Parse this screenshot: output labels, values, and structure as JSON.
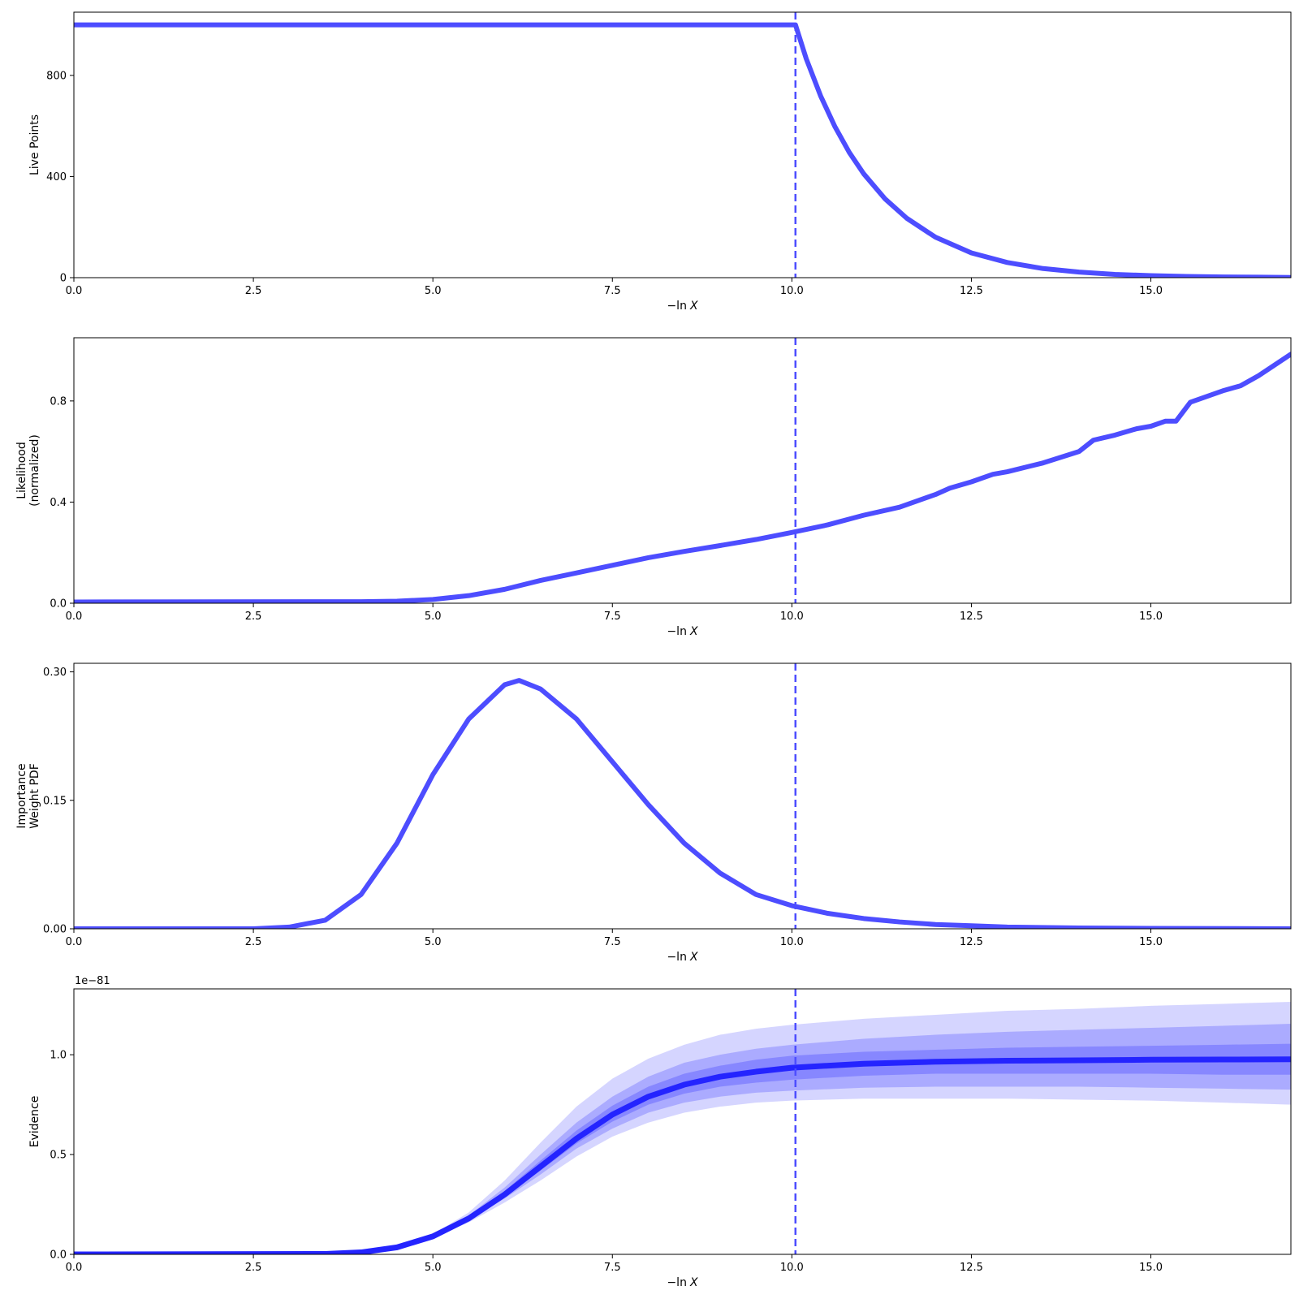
{
  "colors": {
    "line": "#4d4dff",
    "evidence_line": "#2424ff",
    "band_inner": "#6a6aff",
    "band_middle": "#8888ff",
    "band_outer": "#b2b2ff",
    "axis": "#000000"
  },
  "chart_data": [
    {
      "type": "line",
      "id": "live-points",
      "title": "",
      "xlabel_prefix": "−ln",
      "xlabel_var": "X",
      "ylabel_lines": [
        "Live Points"
      ],
      "xlim": [
        0,
        16.95
      ],
      "ylim": [
        0,
        1050
      ],
      "xticks": [
        0,
        2.5,
        5,
        7.5,
        10,
        12.5,
        15
      ],
      "xtick_labels": [
        "0.0",
        "2.5",
        "5.0",
        "7.5",
        "10.0",
        "12.5",
        "15.0"
      ],
      "yticks": [
        0,
        400,
        800
      ],
      "ytick_labels": [
        "0",
        "400",
        "800"
      ],
      "vline_x": 10.05,
      "series": [
        {
          "x": [
            0,
            10.05,
            10.2,
            10.4,
            10.6,
            10.8,
            11.0,
            11.3,
            11.6,
            12.0,
            12.5,
            13.0,
            13.5,
            14.0,
            14.5,
            15.0,
            15.5,
            16.0,
            16.5,
            16.95
          ],
          "y": [
            1000,
            1000,
            866,
            719,
            597,
            495,
            411,
            311,
            235,
            160,
            98,
            60,
            36,
            22,
            13,
            8,
            5,
            3,
            2,
            1
          ]
        }
      ]
    },
    {
      "type": "line",
      "id": "likelihood",
      "title": "",
      "xlabel_prefix": "−ln",
      "xlabel_var": "X",
      "ylabel_lines": [
        "Likelihood",
        "(normalized)"
      ],
      "xlim": [
        0,
        16.95
      ],
      "ylim": [
        0,
        1.05
      ],
      "xticks": [
        0,
        2.5,
        5,
        7.5,
        10,
        12.5,
        15
      ],
      "xtick_labels": [
        "0.0",
        "2.5",
        "5.0",
        "7.5",
        "10.0",
        "12.5",
        "15.0"
      ],
      "yticks": [
        0,
        0.4,
        0.8
      ],
      "ytick_labels": [
        "0.0",
        "0.4",
        "0.8"
      ],
      "vline_x": 10.05,
      "series": [
        {
          "x": [
            0,
            4.0,
            4.5,
            5.0,
            5.5,
            6.0,
            6.5,
            7.0,
            7.5,
            8.0,
            8.5,
            9.0,
            9.5,
            10.0,
            10.5,
            11.0,
            11.5,
            12.0,
            12.2,
            12.5,
            12.8,
            13.0,
            13.5,
            14.0,
            14.2,
            14.5,
            14.8,
            15.0,
            15.2,
            15.35,
            15.55,
            16.0,
            16.25,
            16.5,
            16.95
          ],
          "y": [
            0.005,
            0.006,
            0.008,
            0.015,
            0.03,
            0.055,
            0.09,
            0.12,
            0.15,
            0.18,
            0.205,
            0.228,
            0.252,
            0.28,
            0.31,
            0.348,
            0.38,
            0.43,
            0.455,
            0.48,
            0.51,
            0.52,
            0.555,
            0.6,
            0.645,
            0.665,
            0.69,
            0.7,
            0.72,
            0.72,
            0.795,
            0.84,
            0.86,
            0.9,
            0.985
          ]
        }
      ]
    },
    {
      "type": "line",
      "id": "importance-weight",
      "title": "",
      "xlabel_prefix": "−ln",
      "xlabel_var": "X",
      "ylabel_lines": [
        "Importance",
        "Weight PDF"
      ],
      "xlim": [
        0,
        16.95
      ],
      "ylim": [
        0,
        0.31
      ],
      "xticks": [
        0,
        2.5,
        5,
        7.5,
        10,
        12.5,
        15
      ],
      "xtick_labels": [
        "0.0",
        "2.5",
        "5.0",
        "7.5",
        "10.0",
        "12.5",
        "15.0"
      ],
      "yticks": [
        0,
        0.15,
        0.3
      ],
      "ytick_labels": [
        "0.00",
        "0.15",
        "0.30"
      ],
      "vline_x": 10.05,
      "series": [
        {
          "x": [
            0,
            2.5,
            3.0,
            3.5,
            4.0,
            4.5,
            5.0,
            5.5,
            6.0,
            6.2,
            6.5,
            7.0,
            7.5,
            8.0,
            8.5,
            9.0,
            9.5,
            10.0,
            10.5,
            11.0,
            11.5,
            12.0,
            12.5,
            13.0,
            14.0,
            15.0,
            16.95
          ],
          "y": [
            0,
            0,
            0.002,
            0.01,
            0.04,
            0.1,
            0.18,
            0.245,
            0.285,
            0.29,
            0.28,
            0.245,
            0.195,
            0.145,
            0.1,
            0.065,
            0.04,
            0.027,
            0.018,
            0.012,
            0.008,
            0.005,
            0.0035,
            0.002,
            0.001,
            0.0005,
            0
          ]
        }
      ]
    },
    {
      "type": "area",
      "id": "evidence",
      "title": "",
      "xlabel_prefix": "−ln",
      "xlabel_var": "X",
      "ylabel_lines": [
        "Evidence"
      ],
      "offset_text": "1e−81",
      "xlim": [
        0,
        16.95
      ],
      "ylim": [
        0,
        1.33
      ],
      "xticks": [
        0,
        2.5,
        5,
        7.5,
        10,
        12.5,
        15
      ],
      "xtick_labels": [
        "0.0",
        "2.5",
        "5.0",
        "7.5",
        "10.0",
        "12.5",
        "15.0"
      ],
      "yticks": [
        0,
        0.5,
        1.0
      ],
      "ytick_labels": [
        "0.0",
        "0.5",
        "1.0"
      ],
      "vline_x": 10.05,
      "x": [
        0,
        3.5,
        4.0,
        4.5,
        5.0,
        5.5,
        6.0,
        6.5,
        7.0,
        7.5,
        8.0,
        8.5,
        9.0,
        9.5,
        10.0,
        11.0,
        12.0,
        13.0,
        14.0,
        15.0,
        16.0,
        16.95
      ],
      "median": [
        0,
        0.002,
        0.01,
        0.035,
        0.09,
        0.18,
        0.3,
        0.44,
        0.58,
        0.7,
        0.79,
        0.85,
        0.89,
        0.915,
        0.935,
        0.955,
        0.965,
        0.97,
        0.972,
        0.975,
        0.976,
        0.977
      ],
      "bands": [
        {
          "level": "outer",
          "upper": [
            0,
            0.002,
            0.01,
            0.035,
            0.1,
            0.21,
            0.37,
            0.56,
            0.74,
            0.88,
            0.98,
            1.05,
            1.1,
            1.13,
            1.15,
            1.18,
            1.2,
            1.22,
            1.23,
            1.245,
            1.255,
            1.265
          ],
          "lower": [
            0,
            0.002,
            0.01,
            0.035,
            0.085,
            0.16,
            0.26,
            0.37,
            0.49,
            0.59,
            0.66,
            0.71,
            0.74,
            0.76,
            0.77,
            0.78,
            0.78,
            0.78,
            0.775,
            0.77,
            0.76,
            0.75
          ]
        },
        {
          "level": "middle",
          "upper": [
            0,
            0.002,
            0.01,
            0.035,
            0.095,
            0.195,
            0.335,
            0.5,
            0.66,
            0.79,
            0.89,
            0.96,
            1.0,
            1.03,
            1.05,
            1.08,
            1.1,
            1.115,
            1.125,
            1.135,
            1.145,
            1.155
          ],
          "lower": [
            0,
            0.002,
            0.01,
            0.035,
            0.088,
            0.17,
            0.28,
            0.4,
            0.53,
            0.63,
            0.71,
            0.76,
            0.79,
            0.81,
            0.82,
            0.835,
            0.84,
            0.84,
            0.84,
            0.835,
            0.83,
            0.825
          ]
        },
        {
          "level": "inner",
          "upper": [
            0,
            0.002,
            0.01,
            0.035,
            0.092,
            0.188,
            0.318,
            0.47,
            0.62,
            0.745,
            0.84,
            0.905,
            0.945,
            0.975,
            0.995,
            1.015,
            1.025,
            1.035,
            1.04,
            1.045,
            1.05,
            1.055
          ],
          "lower": [
            0,
            0.002,
            0.01,
            0.035,
            0.089,
            0.175,
            0.29,
            0.42,
            0.555,
            0.665,
            0.75,
            0.805,
            0.84,
            0.86,
            0.875,
            0.895,
            0.905,
            0.905,
            0.905,
            0.905,
            0.9,
            0.9
          ]
        }
      ]
    }
  ]
}
